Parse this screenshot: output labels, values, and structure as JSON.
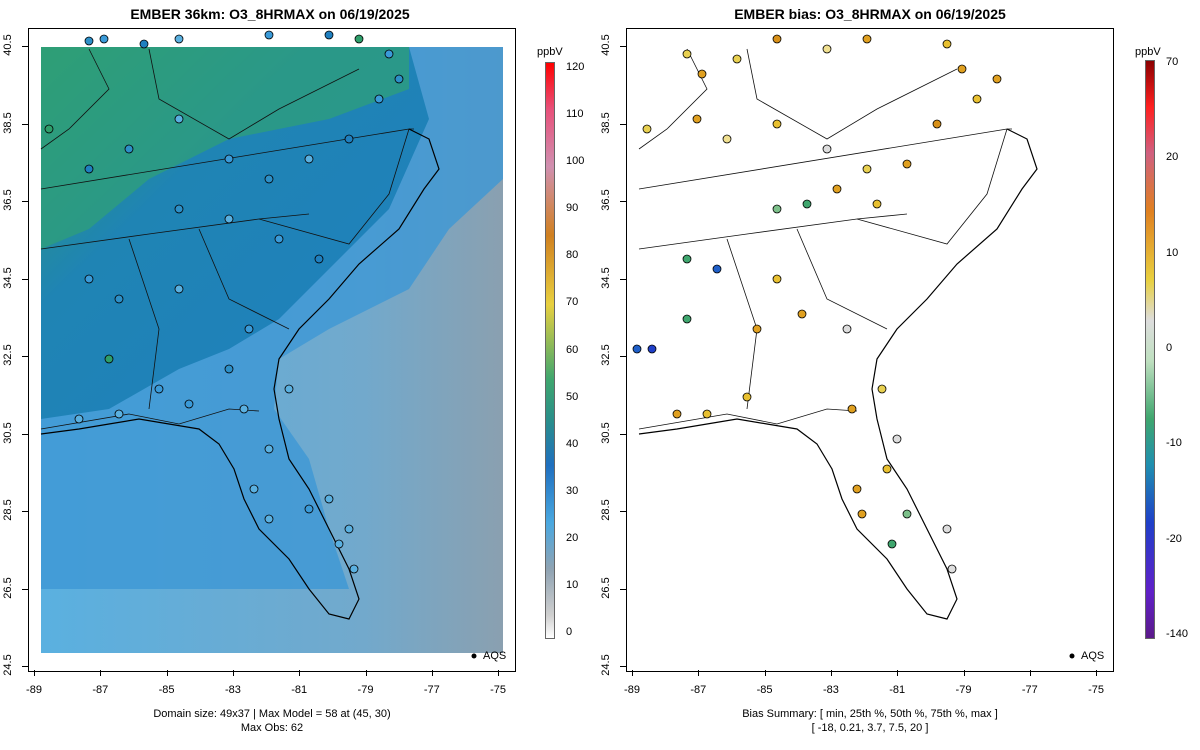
{
  "left": {
    "title": "EMBER 36km: O3_8HRMAX on 06/19/2025",
    "unit": "ppbV",
    "colorbar_ticks": [
      "120",
      "110",
      "100",
      "90",
      "80",
      "70",
      "60",
      "50",
      "40",
      "30",
      "20",
      "10",
      "0"
    ],
    "footer_line1": "Domain size: 49x37 | Max Model = 58 at (45, 30)",
    "footer_line2": "Max Obs: 62",
    "legend": "AQS"
  },
  "right": {
    "title": "EMBER bias: O3_8HRMAX on 06/19/2025",
    "unit": "ppbV",
    "colorbar_ticks": [
      "70",
      "20",
      "10",
      "0",
      "-10",
      "-20",
      "-140"
    ],
    "footer_line1": "Bias Summary: [ min, 25th %, 50th %, 75th %, max ]",
    "footer_line2": "[ -18,   0.21,   3.7,   7.5,   20 ]",
    "legend": "AQS"
  },
  "axes": {
    "x_ticks": [
      "-89",
      "-87",
      "-85",
      "-83",
      "-81",
      "-79",
      "-77",
      "-75"
    ],
    "y_ticks": [
      "40.5",
      "38.5",
      "36.5",
      "34.5",
      "32.5",
      "30.5",
      "28.5",
      "26.5",
      "24.5"
    ]
  },
  "colors": {
    "land_green": "#2e9e6a",
    "mid_blue": "#1f7fbf",
    "ocean_blue": "#5aaede",
    "gray_far": "#8fa3b3"
  }
}
